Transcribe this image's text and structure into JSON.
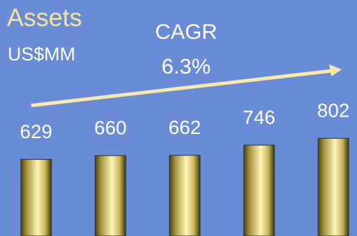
{
  "chart_data": {
    "type": "bar",
    "title": "Assets",
    "subtitle": "US$MM",
    "annotations": [
      "CAGR",
      "6.3%"
    ],
    "values": [
      629,
      660,
      662,
      746,
      802
    ],
    "color": "#e8d27a"
  }
}
